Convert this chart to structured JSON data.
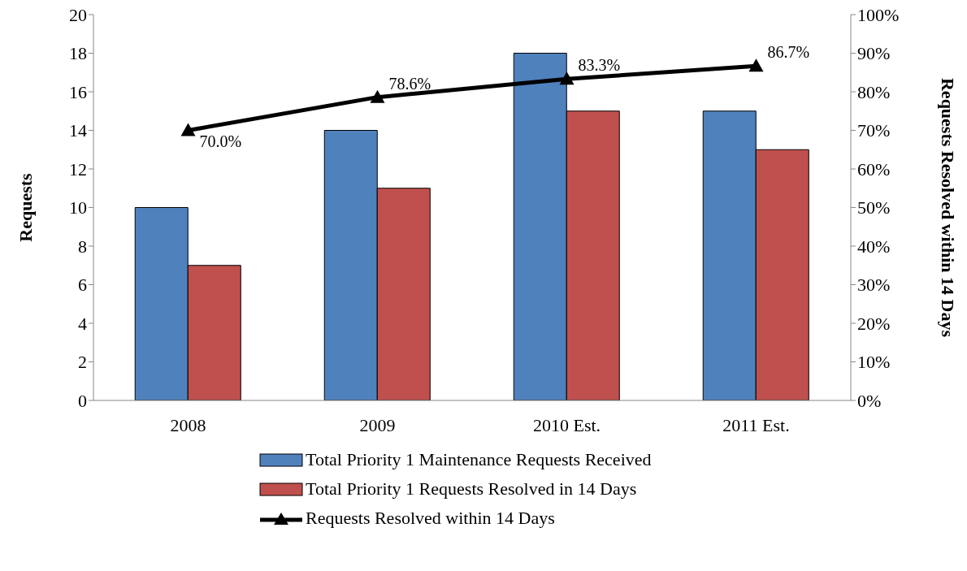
{
  "chart_data": {
    "type": "bar",
    "categories": [
      "2008",
      "2009",
      "2010 Est.",
      "2011 Est."
    ],
    "ylabel": "Requests",
    "y2label": "Requests Resolved within 14 Days",
    "ylim": [
      0,
      20
    ],
    "yticks": [
      0,
      2,
      4,
      6,
      8,
      10,
      12,
      14,
      16,
      18,
      20
    ],
    "y2lim": [
      0,
      100
    ],
    "y2ticks": [
      {
        "value": 0,
        "label": "0%"
      },
      {
        "value": 10,
        "label": "10%"
      },
      {
        "value": 20,
        "label": "20%"
      },
      {
        "value": 30,
        "label": "30%"
      },
      {
        "value": 40,
        "label": "40%"
      },
      {
        "value": 50,
        "label": "50%"
      },
      {
        "value": 60,
        "label": "60%"
      },
      {
        "value": 70,
        "label": "70%"
      },
      {
        "value": 80,
        "label": "80%"
      },
      {
        "value": 90,
        "label": "90%"
      },
      {
        "value": 100,
        "label": "100%"
      }
    ],
    "grid": false,
    "legend": "bottom",
    "series": [
      {
        "name": "Total Priority 1 Maintenance Requests Received",
        "color": "#4f81bd",
        "values": [
          10,
          14,
          18,
          15
        ]
      },
      {
        "name": "Total Priority 1 Requests Resolved in 14 Days",
        "color": "#c0504d",
        "values": [
          7,
          11,
          15,
          13
        ]
      },
      {
        "name": "Requests Resolved within 14 Days",
        "type": "line",
        "axis": "y2",
        "color": "#000000",
        "marker": "triangle",
        "values": [
          70.0,
          78.6,
          83.3,
          86.7
        ],
        "value_labels": [
          "70.0%",
          "78.6%",
          "83.3%",
          "86.7%"
        ]
      }
    ]
  }
}
